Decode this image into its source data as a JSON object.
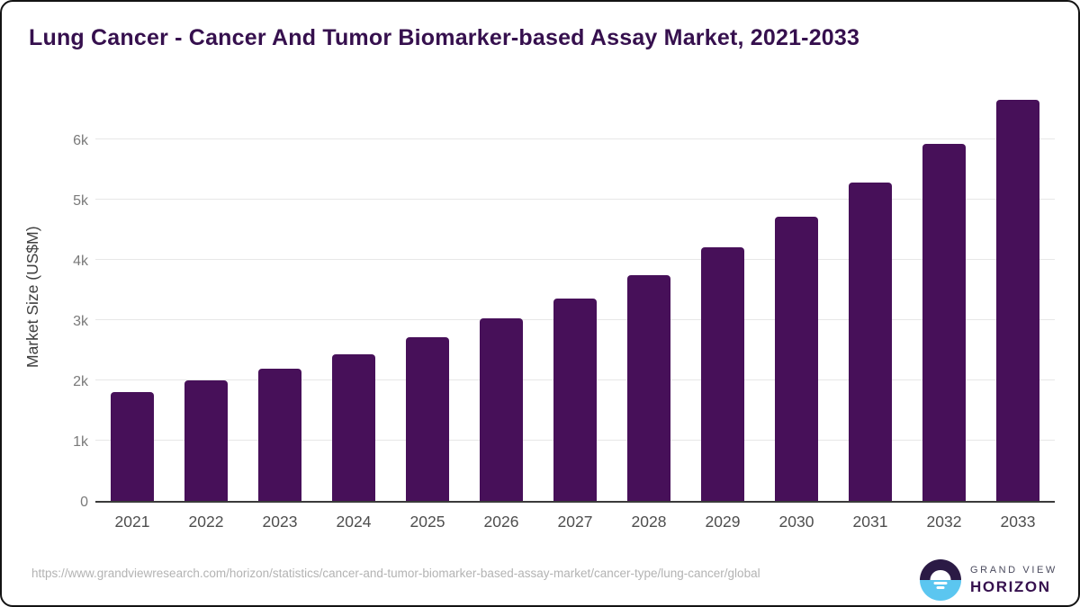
{
  "title": "Lung Cancer - Cancer And Tumor Biomarker-based Assay Market, 2021-2033",
  "chart_data": {
    "type": "bar",
    "categories": [
      "2021",
      "2022",
      "2023",
      "2024",
      "2025",
      "2026",
      "2027",
      "2028",
      "2029",
      "2030",
      "2031",
      "2032",
      "2033"
    ],
    "values": [
      1800,
      2000,
      2190,
      2430,
      2715,
      3030,
      3360,
      3745,
      4210,
      4715,
      5280,
      5925,
      6650
    ],
    "title": "Lung Cancer - Cancer And Tumor Biomarker-based Assay Market, 2021-2033",
    "xlabel": "",
    "ylabel": "Market Size (US$M)",
    "yticks": [
      "0",
      "1k",
      "2k",
      "3k",
      "4k",
      "5k",
      "6k"
    ],
    "ylim": [
      0,
      6820
    ],
    "grid": true,
    "legend": false,
    "bar_color": "#471059",
    "gridline_color": "#e7e7e7",
    "axis_line_color": "#3a3a3a"
  },
  "footer": {
    "source_url": "https://www.grandviewresearch.com/horizon/statistics/cancer-and-tumor-biomarker-based-assay-market/cancer-type/lung-cancer/global"
  },
  "logo": {
    "brand_top": "GRAND VIEW",
    "brand_bottom": "HORIZON",
    "mark_top_color": "#2b1a45",
    "mark_bottom_color": "#5bc6f0",
    "text_color": "#36104e"
  }
}
